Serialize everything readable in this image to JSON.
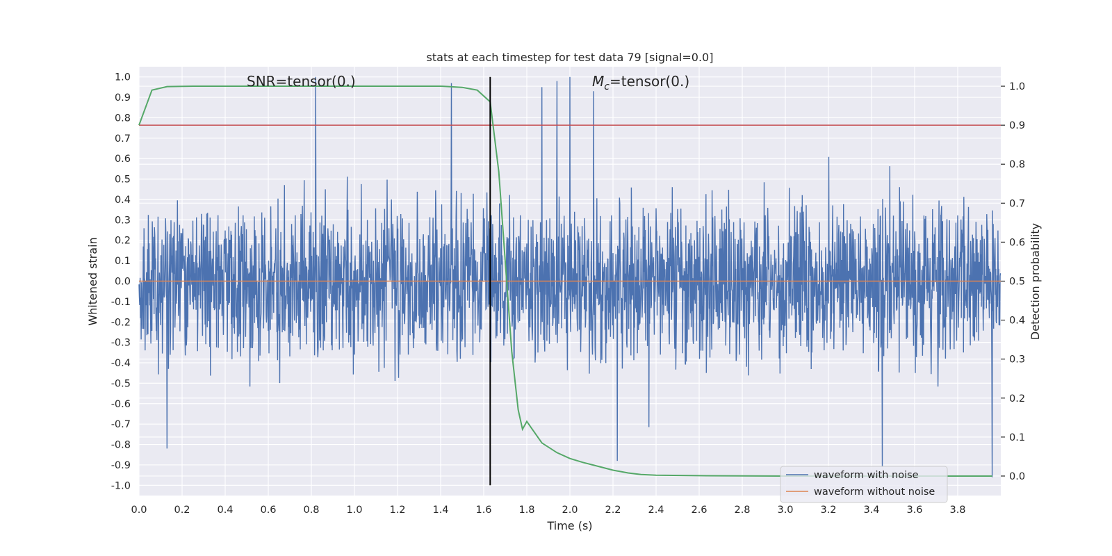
{
  "chart_data": {
    "type": "line",
    "title": "stats at each timestep for test data 79 [signal=0.0]",
    "xlabel": "Time (s)",
    "ylabel": "Whitened strain",
    "y2label": "Detection probability",
    "xlim": [
      0.0,
      4.0
    ],
    "ylim": [
      -1.05,
      1.05
    ],
    "y2lim": [
      -0.05,
      1.05
    ],
    "xticks": [
      "0.0",
      "0.2",
      "0.4",
      "0.6",
      "0.8",
      "1.0",
      "1.2",
      "1.4",
      "1.6",
      "1.8",
      "2.0",
      "2.2",
      "2.4",
      "2.6",
      "2.8",
      "3.0",
      "3.2",
      "3.4",
      "3.6",
      "3.8"
    ],
    "yticks": [
      "1.0",
      "0.9",
      "0.8",
      "0.7",
      "0.6",
      "0.5",
      "0.4",
      "0.3",
      "0.2",
      "0.1",
      "0.0",
      "-0.1",
      "-0.2",
      "-0.3",
      "-0.4",
      "-0.5",
      "-0.6",
      "-0.7",
      "-0.8",
      "-0.9",
      "-1.0"
    ],
    "y2ticks": [
      "1.0",
      "0.9",
      "0.8",
      "0.7",
      "0.6",
      "0.5",
      "0.4",
      "0.3",
      "0.2",
      "0.1",
      "0.0"
    ],
    "annotations": {
      "snr": "SNR=tensor(0.)",
      "mc_symbol": "M",
      "mc_sub": "c",
      "mc_value": "=tensor(0.)"
    },
    "grid": true,
    "legend_position": "lower-right",
    "series": [
      {
        "name": "waveform with noise",
        "color": "#4c72b0",
        "axis": "left",
        "description_values": "dense noise in roughly [-1, 1], peaks near 1.0 at 0.82 s and 2.0 s"
      },
      {
        "name": "waveform without noise",
        "color": "#dd8452",
        "axis": "left",
        "values": "constant 0.0 over 0–4 s"
      },
      {
        "name": "",
        "color": "#55a868",
        "axis": "right",
        "x": [
          0.0,
          0.06,
          0.13,
          0.25,
          0.5,
          0.8,
          1.0,
          1.2,
          1.4,
          1.5,
          1.57,
          1.63,
          1.67,
          1.7,
          1.73,
          1.76,
          1.78,
          1.8,
          1.87,
          1.94,
          2.0,
          2.06,
          2.13,
          2.2,
          2.27,
          2.33,
          2.4,
          2.6,
          3.0,
          3.5,
          3.96
        ],
        "values": [
          0.9,
          0.99,
          0.999,
          1.0,
          1.0,
          1.0,
          1.0,
          1.0,
          1.0,
          0.997,
          0.99,
          0.96,
          0.78,
          0.55,
          0.32,
          0.17,
          0.12,
          0.14,
          0.085,
          0.06,
          0.045,
          0.035,
          0.025,
          0.015,
          0.008,
          0.004,
          0.002,
          0.001,
          0.0,
          0.0,
          0.0
        ]
      }
    ],
    "hlines": [
      {
        "axis": "right",
        "y": 0.9,
        "color": "#c44e52"
      }
    ],
    "vlines": [
      {
        "x": 1.63,
        "ymin": -1.0,
        "ymax": 1.0,
        "color": "#000000"
      }
    ]
  }
}
